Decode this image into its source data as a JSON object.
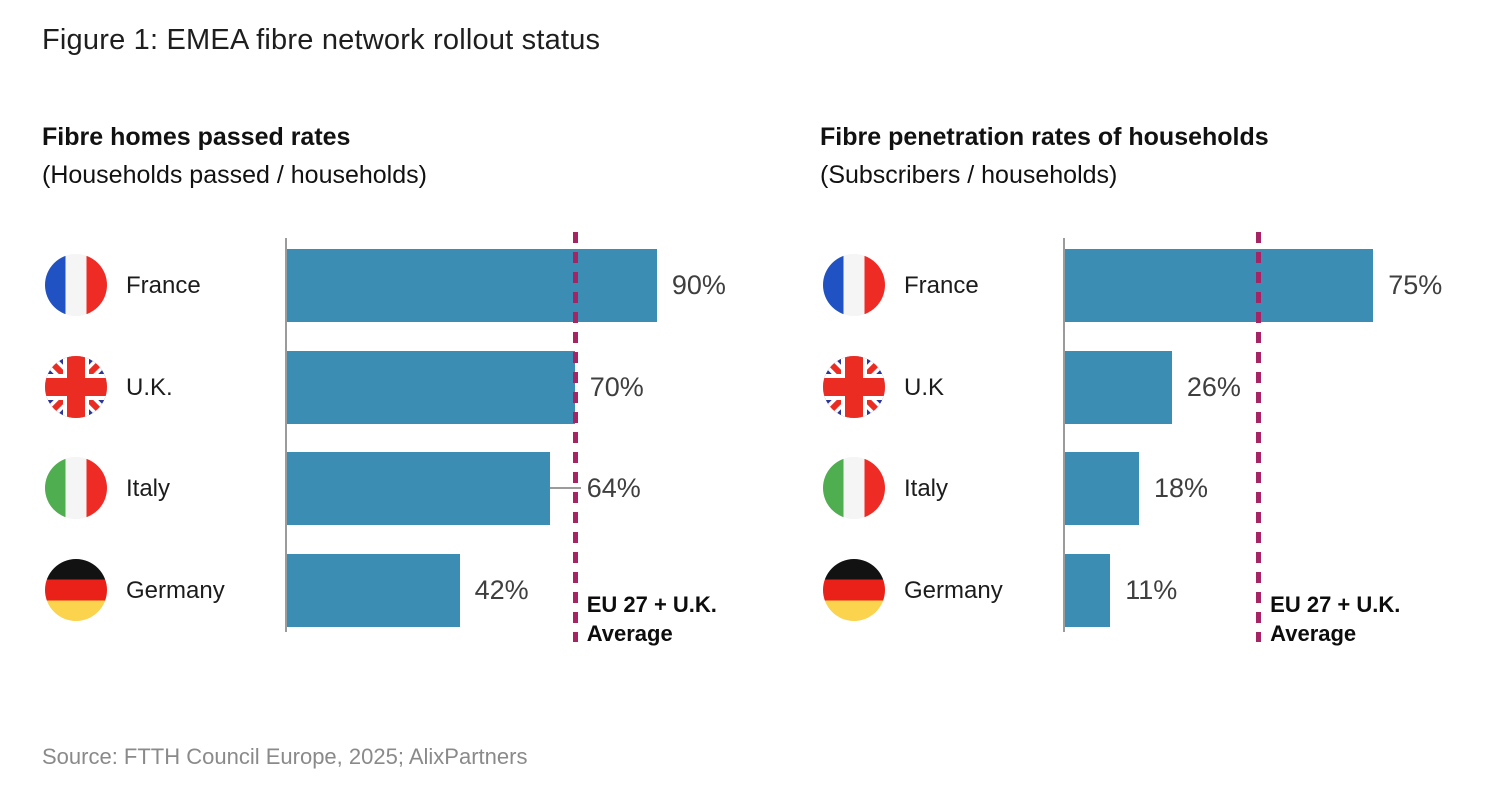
{
  "page": {
    "title": "Figure 1: EMEA fibre network rollout status",
    "source": "Source: FTTH Council Europe, 2025; AlixPartners"
  },
  "colors": {
    "bar": "#3b8db3",
    "average_line": "#a62364",
    "axis": "#9b9b9b",
    "value_label": "#3f3f3f",
    "country_label": "#1c1c1c",
    "heading": "#111111",
    "title": "#1e1e1e",
    "source": "#8a8a8a"
  },
  "chart_data": [
    {
      "type": "bar",
      "orientation": "horizontal",
      "title": "Fibre homes passed rates",
      "subtitle": "(Households passed / households)",
      "categories": [
        "France",
        "U.K.",
        "Italy",
        "Germany"
      ],
      "flags": [
        "france",
        "uk",
        "italy",
        "germany"
      ],
      "values": [
        90,
        70,
        64,
        42
      ],
      "value_labels": [
        "90%",
        "70%",
        "64%",
        "42%"
      ],
      "xlim": [
        0,
        100
      ],
      "grid": false,
      "legend": false,
      "average_line": {
        "style": "dashed",
        "color": "#a62364",
        "label": "EU 27 + U.K. Average",
        "label_lines": [
          "EU 27 + U.K.",
          "Average"
        ],
        "value_pct_estimate": 70
      },
      "callout_leader": [
        false,
        false,
        true,
        false
      ]
    },
    {
      "type": "bar",
      "orientation": "horizontal",
      "title": "Fibre penetration rates of households",
      "subtitle": "(Subscribers / households)",
      "categories": [
        "France",
        "U.K",
        "Italy",
        "Germany"
      ],
      "flags": [
        "france",
        "uk",
        "italy",
        "germany"
      ],
      "values": [
        75,
        26,
        18,
        11
      ],
      "value_labels": [
        "75%",
        "26%",
        "18%",
        "11%"
      ],
      "xlim": [
        0,
        100
      ],
      "grid": false,
      "legend": false,
      "average_line": {
        "style": "dashed",
        "color": "#a62364",
        "label": "EU 27 + U.K. Average",
        "label_lines": [
          "EU 27 + U.K.",
          "Average"
        ],
        "value_pct_estimate": 47
      },
      "callout_leader": [
        false,
        false,
        false,
        false
      ]
    }
  ]
}
